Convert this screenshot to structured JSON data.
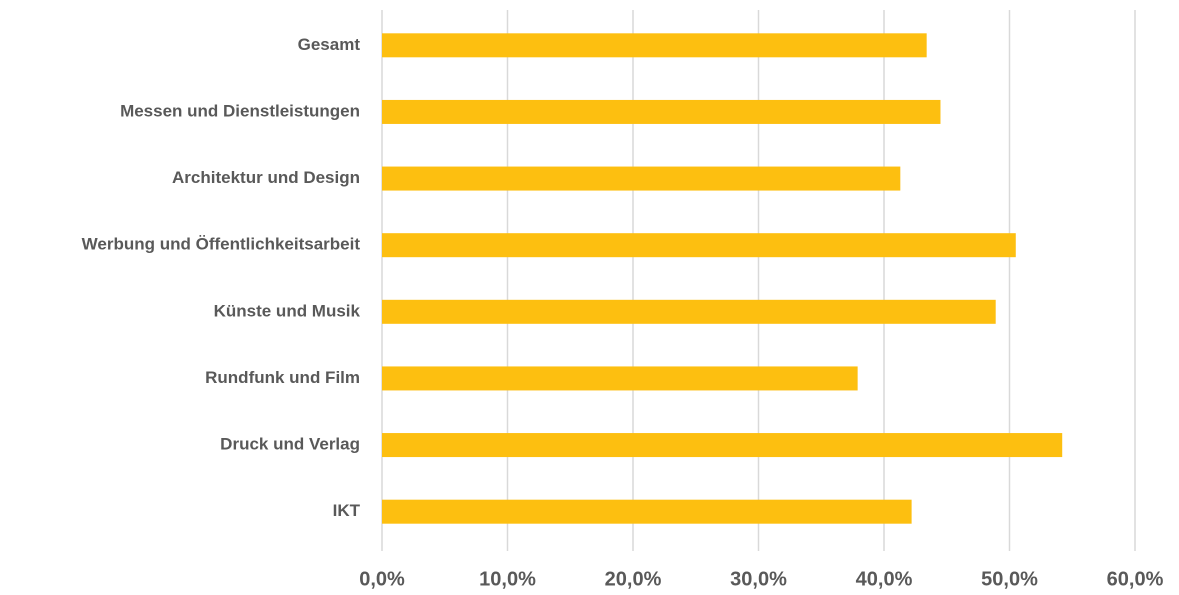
{
  "chart_data": {
    "type": "hbar",
    "categories": [
      "Gesamt",
      "Messen und Dienstleistungen",
      "Architektur und Design",
      "Werbung und Öffentlichkeitsarbeit",
      "Künste und Musik",
      "Rundfunk und Film",
      "Druck und Verlag",
      "IKT"
    ],
    "values": [
      43.4,
      44.5,
      41.3,
      50.5,
      48.9,
      37.9,
      54.2,
      42.2
    ],
    "color": "#fdbf10",
    "xlim": [
      0,
      60
    ],
    "xticks": [
      {
        "value": 0,
        "label": "0,0%"
      },
      {
        "value": 10,
        "label": "10,0%"
      },
      {
        "value": 20,
        "label": "20,0%"
      },
      {
        "value": 30,
        "label": "30,0%"
      },
      {
        "value": 40,
        "label": "40,0%"
      },
      {
        "value": 50,
        "label": "50,0%"
      },
      {
        "value": 60,
        "label": "60,0%"
      }
    ],
    "grid": true
  }
}
